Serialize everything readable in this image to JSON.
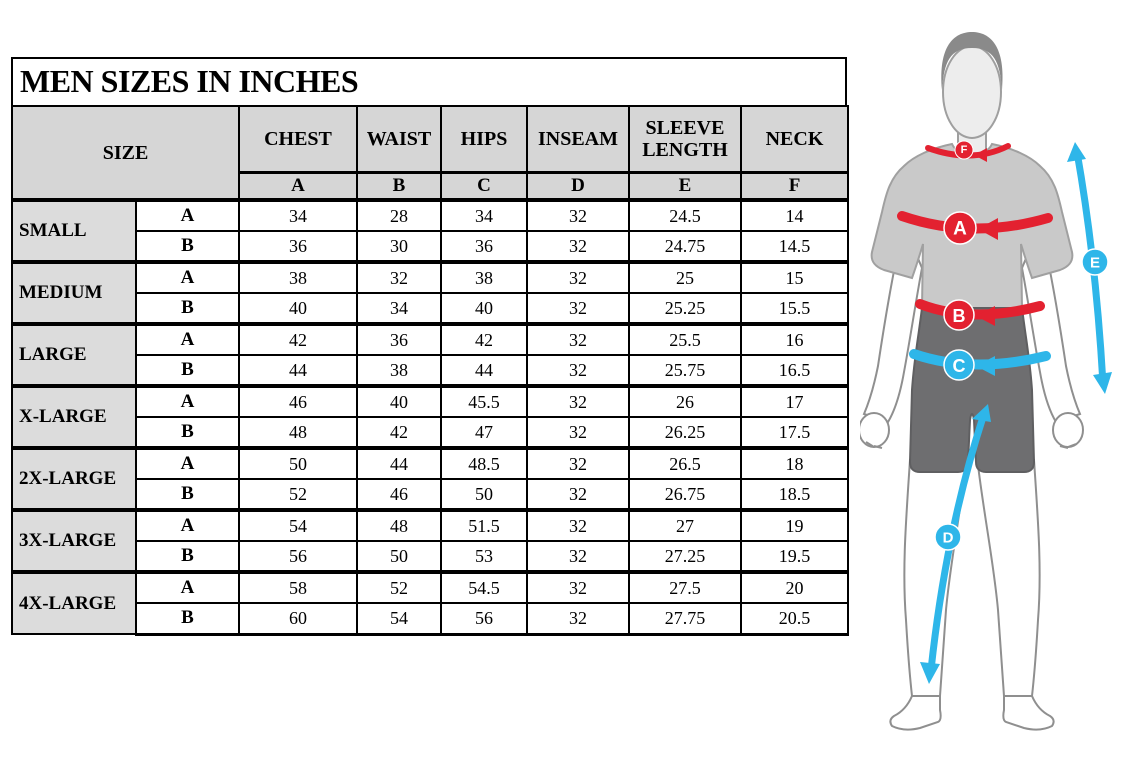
{
  "title": "MEN SIZES IN INCHES",
  "table": {
    "size_header": "SIZE",
    "columns": [
      {
        "label": "CHEST",
        "letter": "A"
      },
      {
        "label": "WAIST",
        "letter": "B"
      },
      {
        "label": "HIPS",
        "letter": "C"
      },
      {
        "label": "INSEAM",
        "letter": "D"
      },
      {
        "label": "SLEEVE LENGTH",
        "letter": "E"
      },
      {
        "label": "NECK",
        "letter": "F"
      }
    ],
    "groups": [
      {
        "size": "SMALL",
        "rows": [
          {
            "variant": "A",
            "values": [
              "34",
              "28",
              "34",
              "32",
              "24.5",
              "14"
            ]
          },
          {
            "variant": "B",
            "values": [
              "36",
              "30",
              "36",
              "32",
              "24.75",
              "14.5"
            ]
          }
        ]
      },
      {
        "size": "MEDIUM",
        "rows": [
          {
            "variant": "A",
            "values": [
              "38",
              "32",
              "38",
              "32",
              "25",
              "15"
            ]
          },
          {
            "variant": "B",
            "values": [
              "40",
              "34",
              "40",
              "32",
              "25.25",
              "15.5"
            ]
          }
        ]
      },
      {
        "size": "LARGE",
        "rows": [
          {
            "variant": "A",
            "values": [
              "42",
              "36",
              "42",
              "32",
              "25.5",
              "16"
            ]
          },
          {
            "variant": "B",
            "values": [
              "44",
              "38",
              "44",
              "32",
              "25.75",
              "16.5"
            ]
          }
        ]
      },
      {
        "size": "X-LARGE",
        "rows": [
          {
            "variant": "A",
            "values": [
              "46",
              "40",
              "45.5",
              "32",
              "26",
              "17"
            ]
          },
          {
            "variant": "B",
            "values": [
              "48",
              "42",
              "47",
              "32",
              "26.25",
              "17.5"
            ]
          }
        ]
      },
      {
        "size": "2X-LARGE",
        "rows": [
          {
            "variant": "A",
            "values": [
              "50",
              "44",
              "48.5",
              "32",
              "26.5",
              "18"
            ]
          },
          {
            "variant": "B",
            "values": [
              "52",
              "46",
              "50",
              "32",
              "26.75",
              "18.5"
            ]
          }
        ]
      },
      {
        "size": "3X-LARGE",
        "rows": [
          {
            "variant": "A",
            "values": [
              "54",
              "48",
              "51.5",
              "32",
              "27",
              "19"
            ]
          },
          {
            "variant": "B",
            "values": [
              "56",
              "50",
              "53",
              "32",
              "27.25",
              "19.5"
            ]
          }
        ]
      },
      {
        "size": "4X-LARGE",
        "rows": [
          {
            "variant": "A",
            "values": [
              "58",
              "52",
              "54.5",
              "32",
              "27.5",
              "20"
            ]
          },
          {
            "variant": "B",
            "values": [
              "60",
              "54",
              "56",
              "32",
              "27.75",
              "20.5"
            ]
          }
        ]
      }
    ]
  },
  "figure": {
    "markers": {
      "chest": "A",
      "waist": "B",
      "hips": "C",
      "inseam": "D",
      "sleeve": "E",
      "neck": "F"
    }
  },
  "colors": {
    "accent_red": "#e32130",
    "accent_cyan": "#2eb6e9",
    "header_bg": "#d6d6d6",
    "shirt_gray": "#c9c9c9",
    "shorts_gray": "#6e6e70",
    "hair_gray": "#8a8a8a",
    "border_black": "#000000"
  }
}
